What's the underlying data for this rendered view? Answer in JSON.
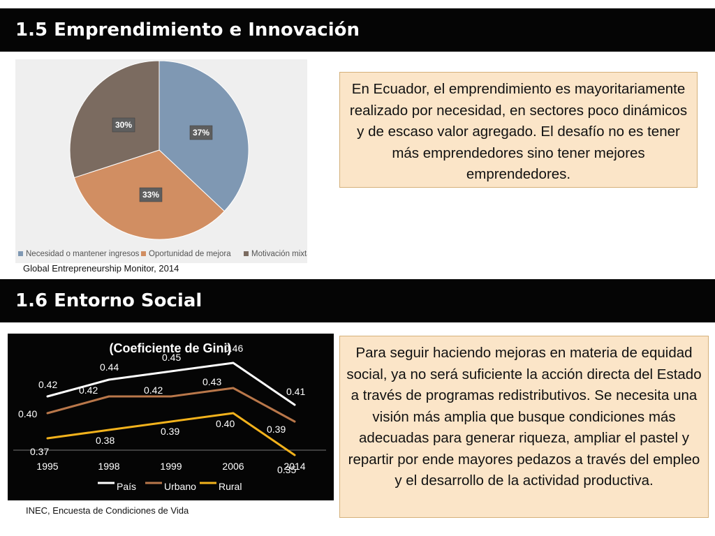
{
  "header1": {
    "title": "1.5 Emprendimiento e Innovación"
  },
  "header2": {
    "title": "1.6 Entorno Social"
  },
  "note1": {
    "text": "En Ecuador, el emprendimiento es mayoritariamente realizado por necesidad, en sectores poco dinámicos y de escaso valor agregado. El desafío no es tener más emprendedores sino tener mejores emprendedores."
  },
  "note2": {
    "text": "Para seguir haciendo mejoras en materia de equidad social, ya no será suficiente la acción directa del Estado a través de programas redistributivos. Se necesita una visión más amplia que busque condiciones más adecuadas para generar riqueza, ampliar el pastel y repartir por ende mayores pedazos a través del empleo y el desarrollo de la actividad productiva."
  },
  "source1": "Global Entrepreneurship Monitor, 2014",
  "source2": "INEC, Encuesta de Condiciones de Vida",
  "chart_data": [
    {
      "type": "pie",
      "title": "",
      "legend_position": "bottom",
      "slices": [
        {
          "name": "Necesidad o mantener ingresos",
          "value": 37,
          "label": "37%",
          "color": "#7f98b3"
        },
        {
          "name": "Oportunidad de mejora",
          "value": 33,
          "label": "33%",
          "color": "#d18e62"
        },
        {
          "name": "Motivación mixta",
          "value": 30,
          "label": "30%",
          "color": "#7b6b60"
        }
      ]
    },
    {
      "type": "line",
      "title": "(Coeficiente de Gini)",
      "categories": [
        "1995",
        "1998",
        "1999",
        "2006",
        "2014"
      ],
      "legend_position": "bottom",
      "grid": false,
      "series": [
        {
          "name": "País",
          "values": [
            0.42,
            0.44,
            0.45,
            0.46,
            0.41
          ],
          "labels": [
            "0.42",
            "0.44",
            "0.45",
            "0.46",
            "0.41"
          ],
          "color": "#ffffff"
        },
        {
          "name": "Urbano",
          "values": [
            0.4,
            0.42,
            0.42,
            0.43,
            0.39
          ],
          "labels": [
            "0.40",
            "0.42",
            "0.42",
            "0.43",
            "0.39"
          ],
          "color": "#b9774a"
        },
        {
          "name": "Rural",
          "values": [
            0.37,
            0.38,
            0.39,
            0.4,
            0.35
          ],
          "labels": [
            "0.37",
            "0.38",
            "0.39",
            "0.40",
            "0.35"
          ],
          "color": "#f2b21c"
        }
      ]
    }
  ]
}
